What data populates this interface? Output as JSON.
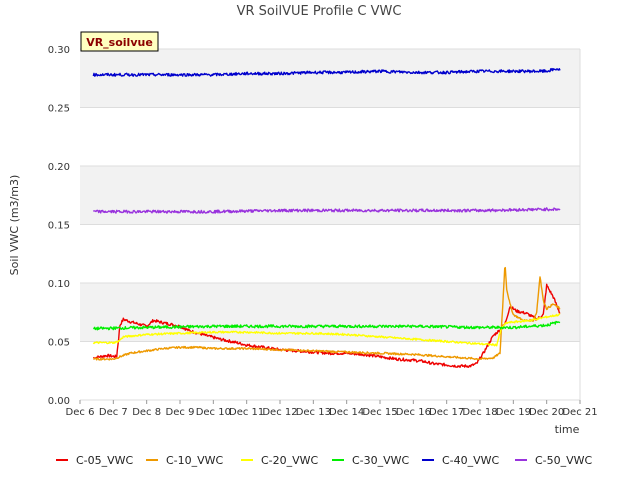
{
  "chart_data": {
    "type": "line",
    "title": "VR SoilVUE Profile C VWC",
    "station_label": "VR_soilvue",
    "xlabel": "time",
    "ylabel": "Soil VWC (m3/m3)",
    "xlim": [
      6,
      21
    ],
    "ylim": [
      0,
      0.3
    ],
    "x_ticks": [
      "Dec 6",
      "Dec 7",
      "Dec 8",
      "Dec 9",
      "Dec 10",
      "Dec 11",
      "Dec 12",
      "Dec 13",
      "Dec 14",
      "Dec 15",
      "Dec 16",
      "Dec 17",
      "Dec 18",
      "Dec 19",
      "Dec 20",
      "Dec 21"
    ],
    "y_ticks": [
      "0.00",
      "0.05",
      "0.10",
      "0.15",
      "0.20",
      "0.25",
      "0.30"
    ],
    "grid": true,
    "legend_position": "bottom",
    "series": [
      {
        "name": "C-05_VWC",
        "color": "#ee0000",
        "x": [
          6.4,
          6.8,
          7.1,
          7.2,
          7.3,
          7.5,
          8.0,
          8.2,
          8.5,
          9.0,
          9.3,
          9.8,
          10.2,
          10.7,
          11.0,
          11.5,
          12.0,
          12.5,
          13.0,
          13.5,
          14.0,
          14.5,
          15.0,
          15.5,
          16.0,
          16.3,
          16.6,
          17.0,
          17.3,
          17.7,
          17.9,
          18.1,
          18.4,
          18.6,
          18.75,
          18.9,
          19.1,
          19.4,
          19.7,
          19.9,
          20.0,
          20.2,
          20.4
        ],
        "y": [
          0.036,
          0.038,
          0.037,
          0.064,
          0.069,
          0.067,
          0.063,
          0.068,
          0.066,
          0.063,
          0.059,
          0.055,
          0.052,
          0.049,
          0.047,
          0.045,
          0.043,
          0.042,
          0.041,
          0.04,
          0.04,
          0.039,
          0.037,
          0.035,
          0.034,
          0.033,
          0.031,
          0.03,
          0.029,
          0.029,
          0.031,
          0.04,
          0.055,
          0.06,
          0.065,
          0.08,
          0.076,
          0.074,
          0.069,
          0.073,
          0.098,
          0.088,
          0.074
        ],
        "mode": "natural"
      },
      {
        "name": "C-10_VWC",
        "color": "#ee9900",
        "x": [
          6.4,
          7.0,
          7.5,
          8.0,
          8.5,
          9.0,
          9.5,
          10.0,
          11.0,
          12.0,
          13.0,
          14.0,
          15.0,
          16.0,
          17.0,
          17.5,
          18.0,
          18.4,
          18.6,
          18.7,
          18.75,
          18.8,
          18.9,
          19.0,
          19.3,
          19.6,
          19.7,
          19.8,
          19.9,
          20.0,
          20.2,
          20.4
        ],
        "y": [
          0.035,
          0.035,
          0.04,
          0.042,
          0.044,
          0.045,
          0.045,
          0.044,
          0.044,
          0.043,
          0.042,
          0.041,
          0.04,
          0.039,
          0.037,
          0.036,
          0.035,
          0.036,
          0.04,
          0.09,
          0.118,
          0.095,
          0.082,
          0.073,
          0.068,
          0.068,
          0.075,
          0.106,
          0.085,
          0.078,
          0.082,
          0.078
        ],
        "mode": "raw"
      },
      {
        "name": "C-20_VWC",
        "color": "#ffff00",
        "x": [
          6.4,
          7.0,
          7.15,
          7.3,
          8.0,
          9.0,
          10.0,
          11.0,
          12.0,
          13.0,
          14.0,
          15.0,
          16.0,
          17.0,
          18.0,
          18.5,
          18.65,
          18.8,
          19.5,
          20.0,
          20.4
        ],
        "y": [
          0.049,
          0.049,
          0.05,
          0.054,
          0.056,
          0.057,
          0.058,
          0.058,
          0.057,
          0.057,
          0.056,
          0.054,
          0.052,
          0.05,
          0.048,
          0.047,
          0.062,
          0.066,
          0.068,
          0.071,
          0.073
        ],
        "mode": "raw"
      },
      {
        "name": "C-30_VWC",
        "color": "#00ee00",
        "x": [
          6.4,
          8.0,
          10.0,
          12.0,
          14.0,
          16.0,
          18.0,
          19.0,
          20.0,
          20.4
        ],
        "y": [
          0.061,
          0.062,
          0.063,
          0.063,
          0.063,
          0.063,
          0.062,
          0.062,
          0.064,
          0.067
        ],
        "mode": "natural"
      },
      {
        "name": "C-40_VWC",
        "color": "#0000cc",
        "x": [
          6.4,
          7.0,
          8.0,
          9.0,
          10.0,
          11.0,
          12.0,
          13.0,
          14.0,
          15.0,
          16.0,
          17.0,
          18.0,
          19.0,
          20.0,
          20.3,
          20.4
        ],
        "y": [
          0.278,
          0.278,
          0.278,
          0.278,
          0.278,
          0.279,
          0.279,
          0.28,
          0.28,
          0.281,
          0.28,
          0.28,
          0.281,
          0.281,
          0.281,
          0.283,
          0.282
        ],
        "mode": "natural"
      },
      {
        "name": "C-50_VWC",
        "color": "#9933dd",
        "x": [
          6.4,
          8.0,
          10.0,
          12.0,
          14.0,
          16.0,
          18.0,
          20.0,
          20.4
        ],
        "y": [
          0.161,
          0.161,
          0.161,
          0.162,
          0.162,
          0.162,
          0.162,
          0.163,
          0.163
        ],
        "mode": "natural"
      }
    ]
  }
}
